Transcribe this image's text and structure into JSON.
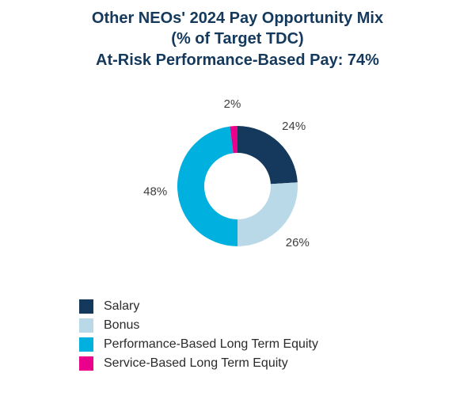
{
  "title": {
    "line1": "Other NEOs' 2024 Pay Opportunity Mix",
    "line2": "(% of Target TDC)",
    "line3": "At-Risk Performance-Based Pay: 74%"
  },
  "colors": {
    "title_text": "#14395C",
    "segment_label_text": "#3d3d3d"
  },
  "chart_data": {
    "type": "pie",
    "subtype": "donut",
    "title": "Other NEOs' 2024 Pay Opportunity Mix (% of Target TDC)",
    "annotation": "At-Risk Performance-Based Pay: 74%",
    "start_angle_deg": 0,
    "direction": "clockwise",
    "legend_position": "bottom-left",
    "segments": [
      {
        "label": "Salary",
        "value": 24,
        "display": "24%",
        "color": "#14395C"
      },
      {
        "label": "Bonus",
        "value": 26,
        "display": "26%",
        "color": "#B9D8E8"
      },
      {
        "label": "Performance-Based Long Term Equity",
        "value": 48,
        "display": "48%",
        "color": "#00B0DF"
      },
      {
        "label": "Service-Based Long Term Equity",
        "value": 2,
        "display": "2%",
        "color": "#EB008B"
      }
    ]
  }
}
